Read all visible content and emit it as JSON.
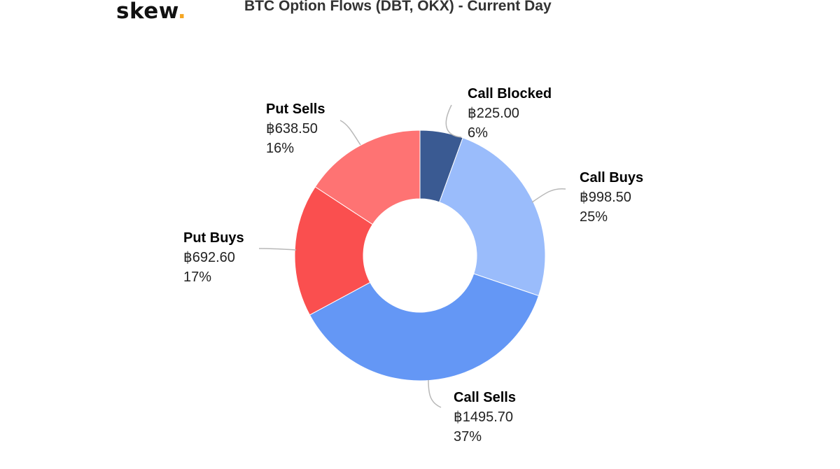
{
  "logo": {
    "text": "skew",
    "dot": ".",
    "dot_color": "#f5a623"
  },
  "chart_data": {
    "type": "pie",
    "variant": "donut",
    "title": "BTC Option Flows (DBT, OKX) - Current Day",
    "currency_symbol": "฿",
    "slices": [
      {
        "label": "Call Blocked",
        "value": 225.0,
        "value_text": "฿225.00",
        "percent_text": "6%",
        "color": "#3a5a92"
      },
      {
        "label": "Call Buys",
        "value": 998.5,
        "value_text": "฿998.50",
        "percent_text": "25%",
        "color": "#9abcfb"
      },
      {
        "label": "Call Sells",
        "value": 1495.7,
        "value_text": "฿1495.70",
        "percent_text": "37%",
        "color": "#6497f5"
      },
      {
        "label": "Put Buys",
        "value": 692.6,
        "value_text": "฿692.60",
        "percent_text": "17%",
        "color": "#fa4f4f"
      },
      {
        "label": "Put Sells",
        "value": 638.5,
        "value_text": "฿638.50",
        "percent_text": "16%",
        "color": "#fe7373"
      }
    ],
    "legend": "none"
  }
}
